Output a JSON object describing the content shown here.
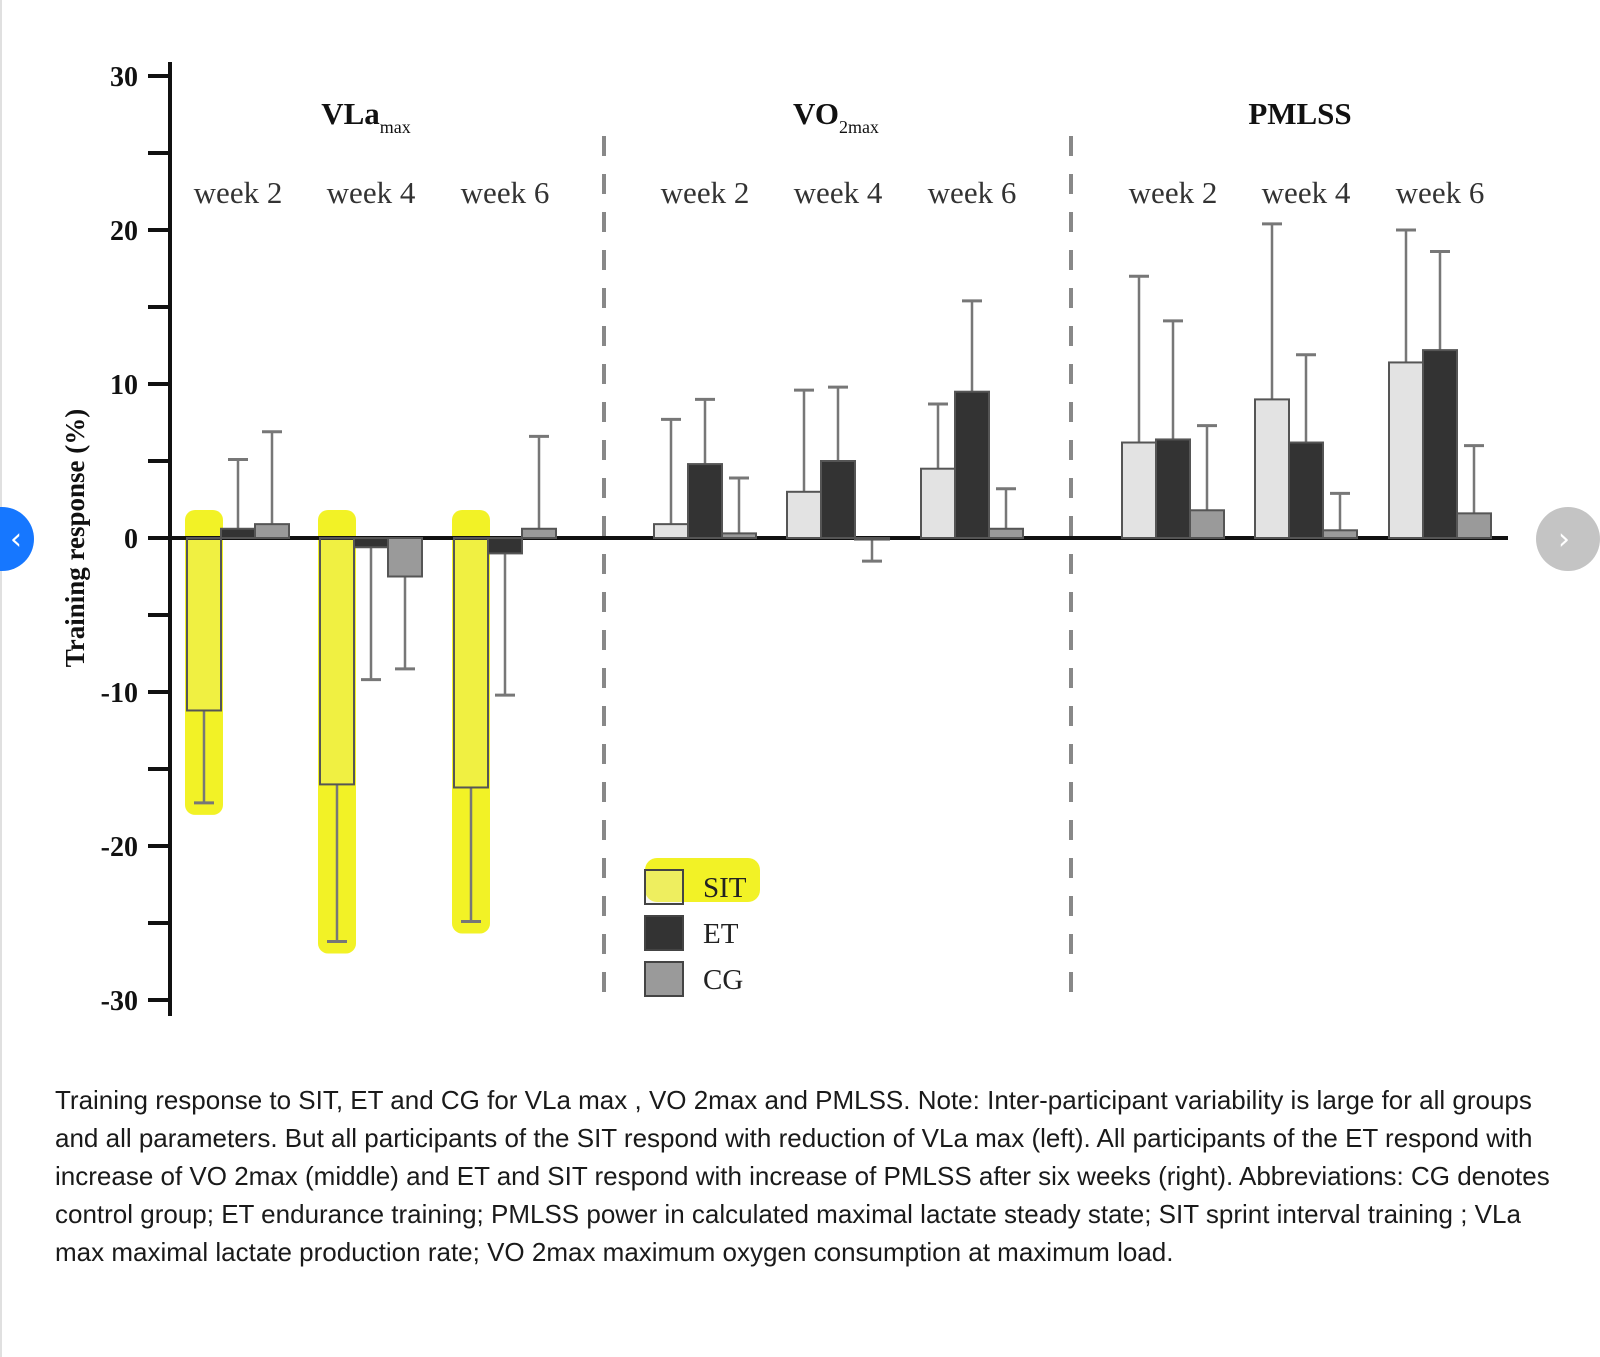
{
  "chart_data": {
    "type": "bar",
    "ylabel": "Training response (%)",
    "ylim": [
      -30,
      30
    ],
    "yticks_major": [
      30,
      20,
      10,
      0,
      -10,
      -20,
      -30
    ],
    "yticks_minor": [
      25,
      15,
      5,
      -5,
      -15,
      -25
    ],
    "grid": false,
    "legend_position": "bottom-center",
    "series": [
      {
        "name": "SIT",
        "color": "#e3e3e3"
      },
      {
        "name": "ET",
        "color": "#333333"
      },
      {
        "name": "CG",
        "color": "#9a9a9a"
      }
    ],
    "panels": [
      {
        "title": "VLa",
        "title_sub": "max",
        "categories": [
          "week 2",
          "week 4",
          "week 6"
        ],
        "values": {
          "SIT": [
            -11.2,
            -16.0,
            -16.2
          ],
          "ET": [
            0.6,
            -0.6,
            -1.0
          ],
          "CG": [
            0.9,
            -2.5,
            0.6
          ]
        },
        "error_bar_ends": {
          "SIT": [
            -17.2,
            -26.2,
            -24.9
          ],
          "ET": [
            5.1,
            -9.2,
            -10.2
          ],
          "CG": [
            6.9,
            -8.5,
            6.6
          ]
        }
      },
      {
        "title": "VO",
        "title_sub": "2max",
        "categories": [
          "week 2",
          "week 4",
          "week 6"
        ],
        "values": {
          "SIT": [
            0.9,
            3.0,
            4.5
          ],
          "ET": [
            4.8,
            5.0,
            9.5
          ],
          "CG": [
            0.3,
            -0.1,
            0.6
          ]
        },
        "error_bar_ends": {
          "SIT": [
            7.7,
            9.6,
            8.7
          ],
          "ET": [
            9.0,
            9.8,
            15.4
          ],
          "CG": [
            3.9,
            -1.5,
            3.2
          ]
        }
      },
      {
        "title": "PMLSS",
        "title_sub": "",
        "categories": [
          "week 2",
          "week 4",
          "week 6"
        ],
        "values": {
          "SIT": [
            6.2,
            9.0,
            11.4
          ],
          "ET": [
            6.4,
            6.2,
            12.2
          ],
          "CG": [
            1.8,
            0.5,
            1.6
          ]
        },
        "error_bar_ends": {
          "SIT": [
            17.0,
            20.4,
            20.0
          ],
          "ET": [
            14.1,
            11.9,
            18.6
          ],
          "CG": [
            7.3,
            2.9,
            6.0
          ]
        }
      }
    ],
    "highlight_annotation": {
      "color": "#f0f000",
      "highlights": [
        "SIT bars in VLa max panel",
        "SIT legend entry"
      ]
    }
  },
  "caption": "Training response to SIT, ET and CG for VLa max , VO 2max and PMLSS. Note: Inter-participant variability is large for all groups and all parameters. But all participants of the SIT respond with reduction of VLa max (left). All participants of the ET respond with increase of VO 2max (middle) and ET and SIT respond with increase of PMLSS after six weeks (right). Abbreviations: CG denotes control group; ET endurance training; PMLSS power in calculated maximal lactate steady state; SIT sprint interval training ; VLa max maximal lactate production rate; VO 2max maximum oxygen consumption at maximum load.",
  "nav": {
    "prev_icon": "‹",
    "next_icon": "›"
  }
}
